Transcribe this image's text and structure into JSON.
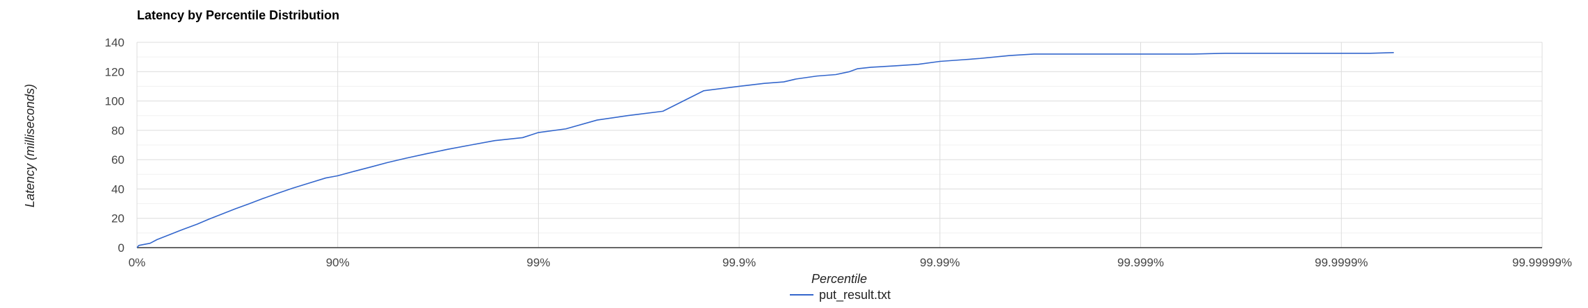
{
  "chart_data": {
    "type": "line",
    "title": "Latency by Percentile Distribution",
    "xlabel": "Percentile",
    "ylabel": "Latency (milliseconds)",
    "x_scale": "log-percentile",
    "x_ticks": [
      "0%",
      "90%",
      "99%",
      "99.9%",
      "99.99%",
      "99.999%",
      "99.9999%",
      "99.99999%"
    ],
    "ylim": [
      0,
      140
    ],
    "y_ticks": [
      0,
      20,
      40,
      60,
      80,
      100,
      120,
      140
    ],
    "grid": true,
    "legend": "bottom",
    "series": [
      {
        "name": "put_result.txt",
        "color": "#3366cc",
        "x": [
          0,
          2.09,
          13.96,
          20.57,
          31.62,
          41.12,
          49.88,
          56.35,
          62.42,
          67.64,
          72.46,
          76.44,
          80.05,
          83.19,
          86.1,
          88.53,
          90.0,
          91.7,
          93.17,
          94.34,
          95.44,
          96.38,
          97.16,
          97.83,
          98.35,
          98.8,
          99.0,
          99.27,
          99.49,
          99.64,
          99.76,
          99.85,
          99.9,
          99.925,
          99.94,
          99.948,
          99.959,
          99.967,
          99.9718,
          99.9743,
          99.978,
          99.9835,
          99.9872,
          99.99,
          99.9921,
          99.9937,
          99.9955,
          99.9966,
          99.9972,
          99.9979,
          99.9984,
          99.99884,
          99.999,
          99.99928,
          99.99945,
          99.99962,
          99.99972,
          99.999809,
          99.999867,
          99.9999,
          99.9999282,
          99.9999452
        ],
        "values": [
          0,
          1.5,
          3,
          5.5,
          9,
          12.5,
          16,
          19.5,
          23,
          26.5,
          30,
          33.5,
          37,
          40.5,
          44,
          47.5,
          49,
          52,
          55,
          58,
          61,
          64,
          67,
          70,
          73,
          75,
          78.5,
          81,
          87,
          90,
          93,
          107,
          110,
          112,
          113,
          115,
          117,
          118,
          120,
          122,
          123,
          124,
          125,
          127,
          128,
          129,
          131,
          132,
          132,
          132,
          132,
          132,
          132,
          132,
          132,
          132.5,
          132.5,
          132.5,
          132.5,
          132.5,
          132.5,
          133
        ]
      }
    ]
  }
}
